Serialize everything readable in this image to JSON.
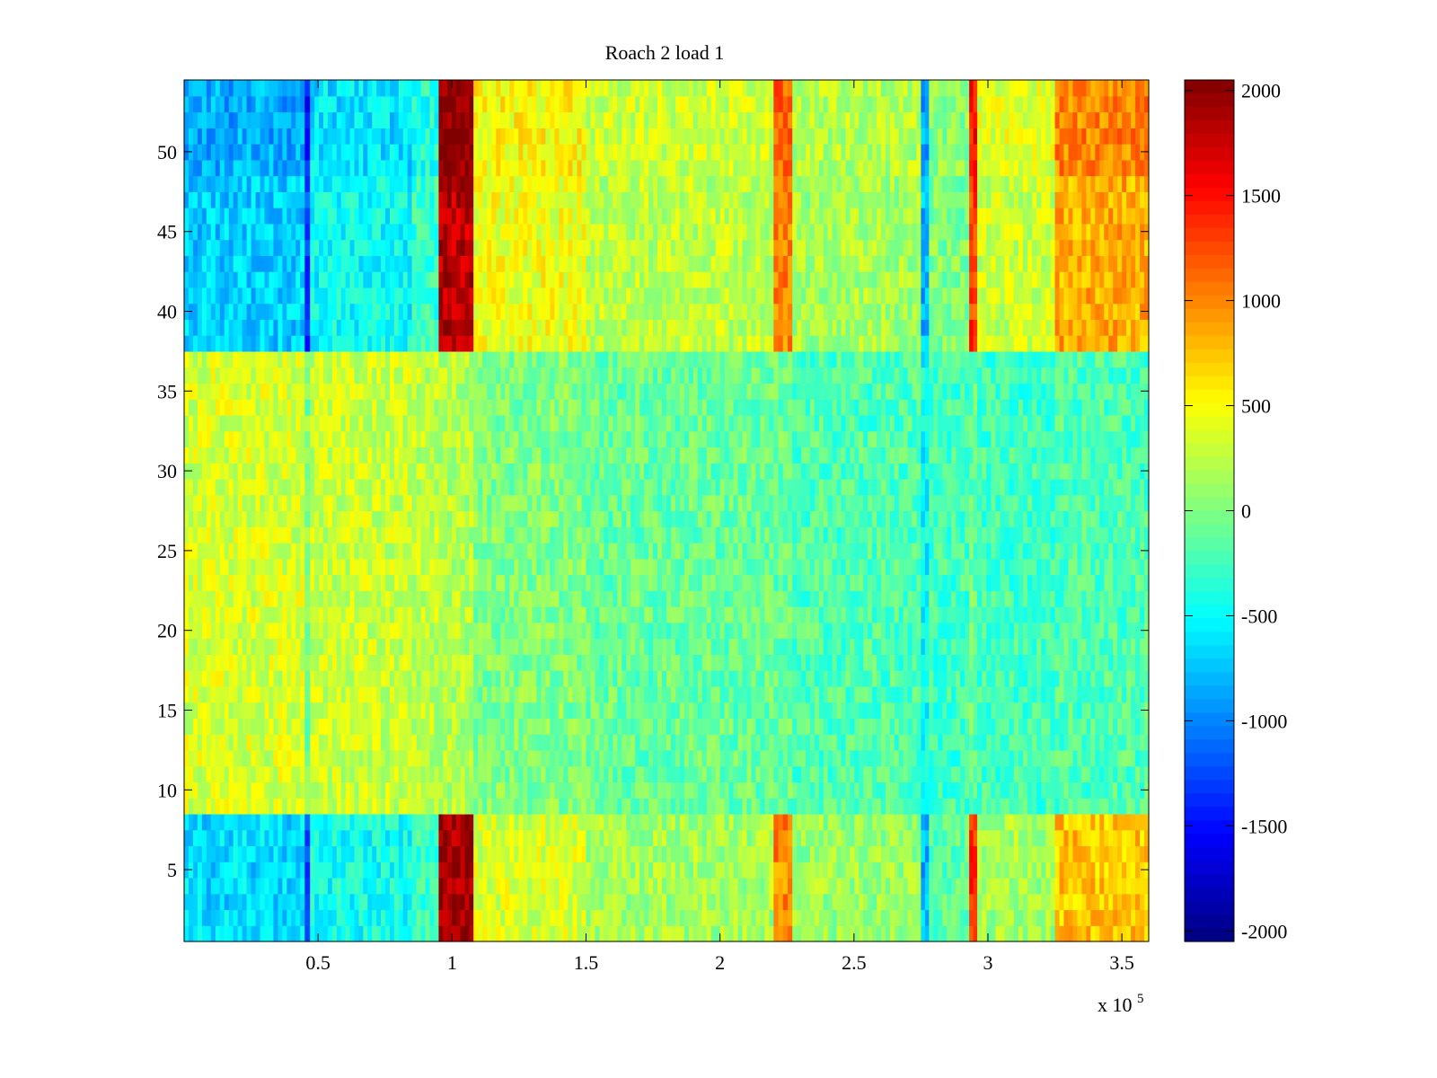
{
  "chart_data": {
    "type": "heatmap",
    "title": "Roach 2 load 1",
    "xlabel": "",
    "ylabel": "",
    "x_multiplier_label": "x 10",
    "x_multiplier_exponent": "5",
    "xlim": [
      0,
      3.6
    ],
    "ylim": [
      0.5,
      54.5
    ],
    "rows": 54,
    "x_ticks": [
      {
        "value": 0.5,
        "label": "0.5"
      },
      {
        "value": 1,
        "label": "1"
      },
      {
        "value": 1.5,
        "label": "1.5"
      },
      {
        "value": 2,
        "label": "2"
      },
      {
        "value": 2.5,
        "label": "2.5"
      },
      {
        "value": 3,
        "label": "3"
      },
      {
        "value": 3.5,
        "label": "3.5"
      }
    ],
    "y_ticks": [
      {
        "value": 5,
        "label": "5"
      },
      {
        "value": 10,
        "label": "10"
      },
      {
        "value": 15,
        "label": "15"
      },
      {
        "value": 20,
        "label": "20"
      },
      {
        "value": 25,
        "label": "25"
      },
      {
        "value": 30,
        "label": "30"
      },
      {
        "value": 35,
        "label": "35"
      },
      {
        "value": 40,
        "label": "40"
      },
      {
        "value": 45,
        "label": "45"
      },
      {
        "value": 50,
        "label": "50"
      }
    ],
    "colorbar": {
      "colormap": "jet",
      "clim": [
        -2050,
        2050
      ],
      "ticks": [
        {
          "value": 2000,
          "label": "2000"
        },
        {
          "value": 1500,
          "label": "1500"
        },
        {
          "value": 1000,
          "label": "1000"
        },
        {
          "value": 500,
          "label": "500"
        },
        {
          "value": 0,
          "label": "0"
        },
        {
          "value": -500,
          "label": "-500"
        },
        {
          "value": -1000,
          "label": "-1000"
        },
        {
          "value": -1500,
          "label": "-1500"
        },
        {
          "value": -2000,
          "label": "-2000"
        }
      ]
    },
    "column_bands": [
      {
        "x0": 0,
        "x1": 0.45,
        "top": -700,
        "mid": 350,
        "bottom": -650
      },
      {
        "x0": 0.45,
        "x1": 0.47,
        "top": -1300,
        "mid": 0,
        "bottom": -1300
      },
      {
        "x0": 0.47,
        "x1": 0.85,
        "top": -500,
        "mid": 300,
        "bottom": -450
      },
      {
        "x0": 0.85,
        "x1": 0.95,
        "top": -300,
        "mid": 250,
        "bottom": -300
      },
      {
        "x0": 0.95,
        "x1": 1.08,
        "top": 1800,
        "mid": 200,
        "bottom": 1900
      },
      {
        "x0": 1.08,
        "x1": 1.5,
        "top": 450,
        "mid": 0,
        "bottom": 350
      },
      {
        "x0": 1.5,
        "x1": 2.2,
        "top": 250,
        "mid": -100,
        "bottom": 150
      },
      {
        "x0": 2.2,
        "x1": 2.27,
        "top": 1000,
        "mid": -100,
        "bottom": 1000
      },
      {
        "x0": 2.27,
        "x1": 2.75,
        "top": 150,
        "mid": -200,
        "bottom": 100
      },
      {
        "x0": 2.75,
        "x1": 2.78,
        "top": -800,
        "mid": -500,
        "bottom": -800
      },
      {
        "x0": 2.78,
        "x1": 2.93,
        "top": 0,
        "mid": -250,
        "bottom": -150
      },
      {
        "x0": 2.93,
        "x1": 2.96,
        "top": 1300,
        "mid": -100,
        "bottom": 1300
      },
      {
        "x0": 2.96,
        "x1": 3.25,
        "top": 300,
        "mid": -250,
        "bottom": 150
      },
      {
        "x0": 3.25,
        "x1": 3.6,
        "top": 850,
        "mid": -200,
        "bottom": 750
      }
    ]
  }
}
